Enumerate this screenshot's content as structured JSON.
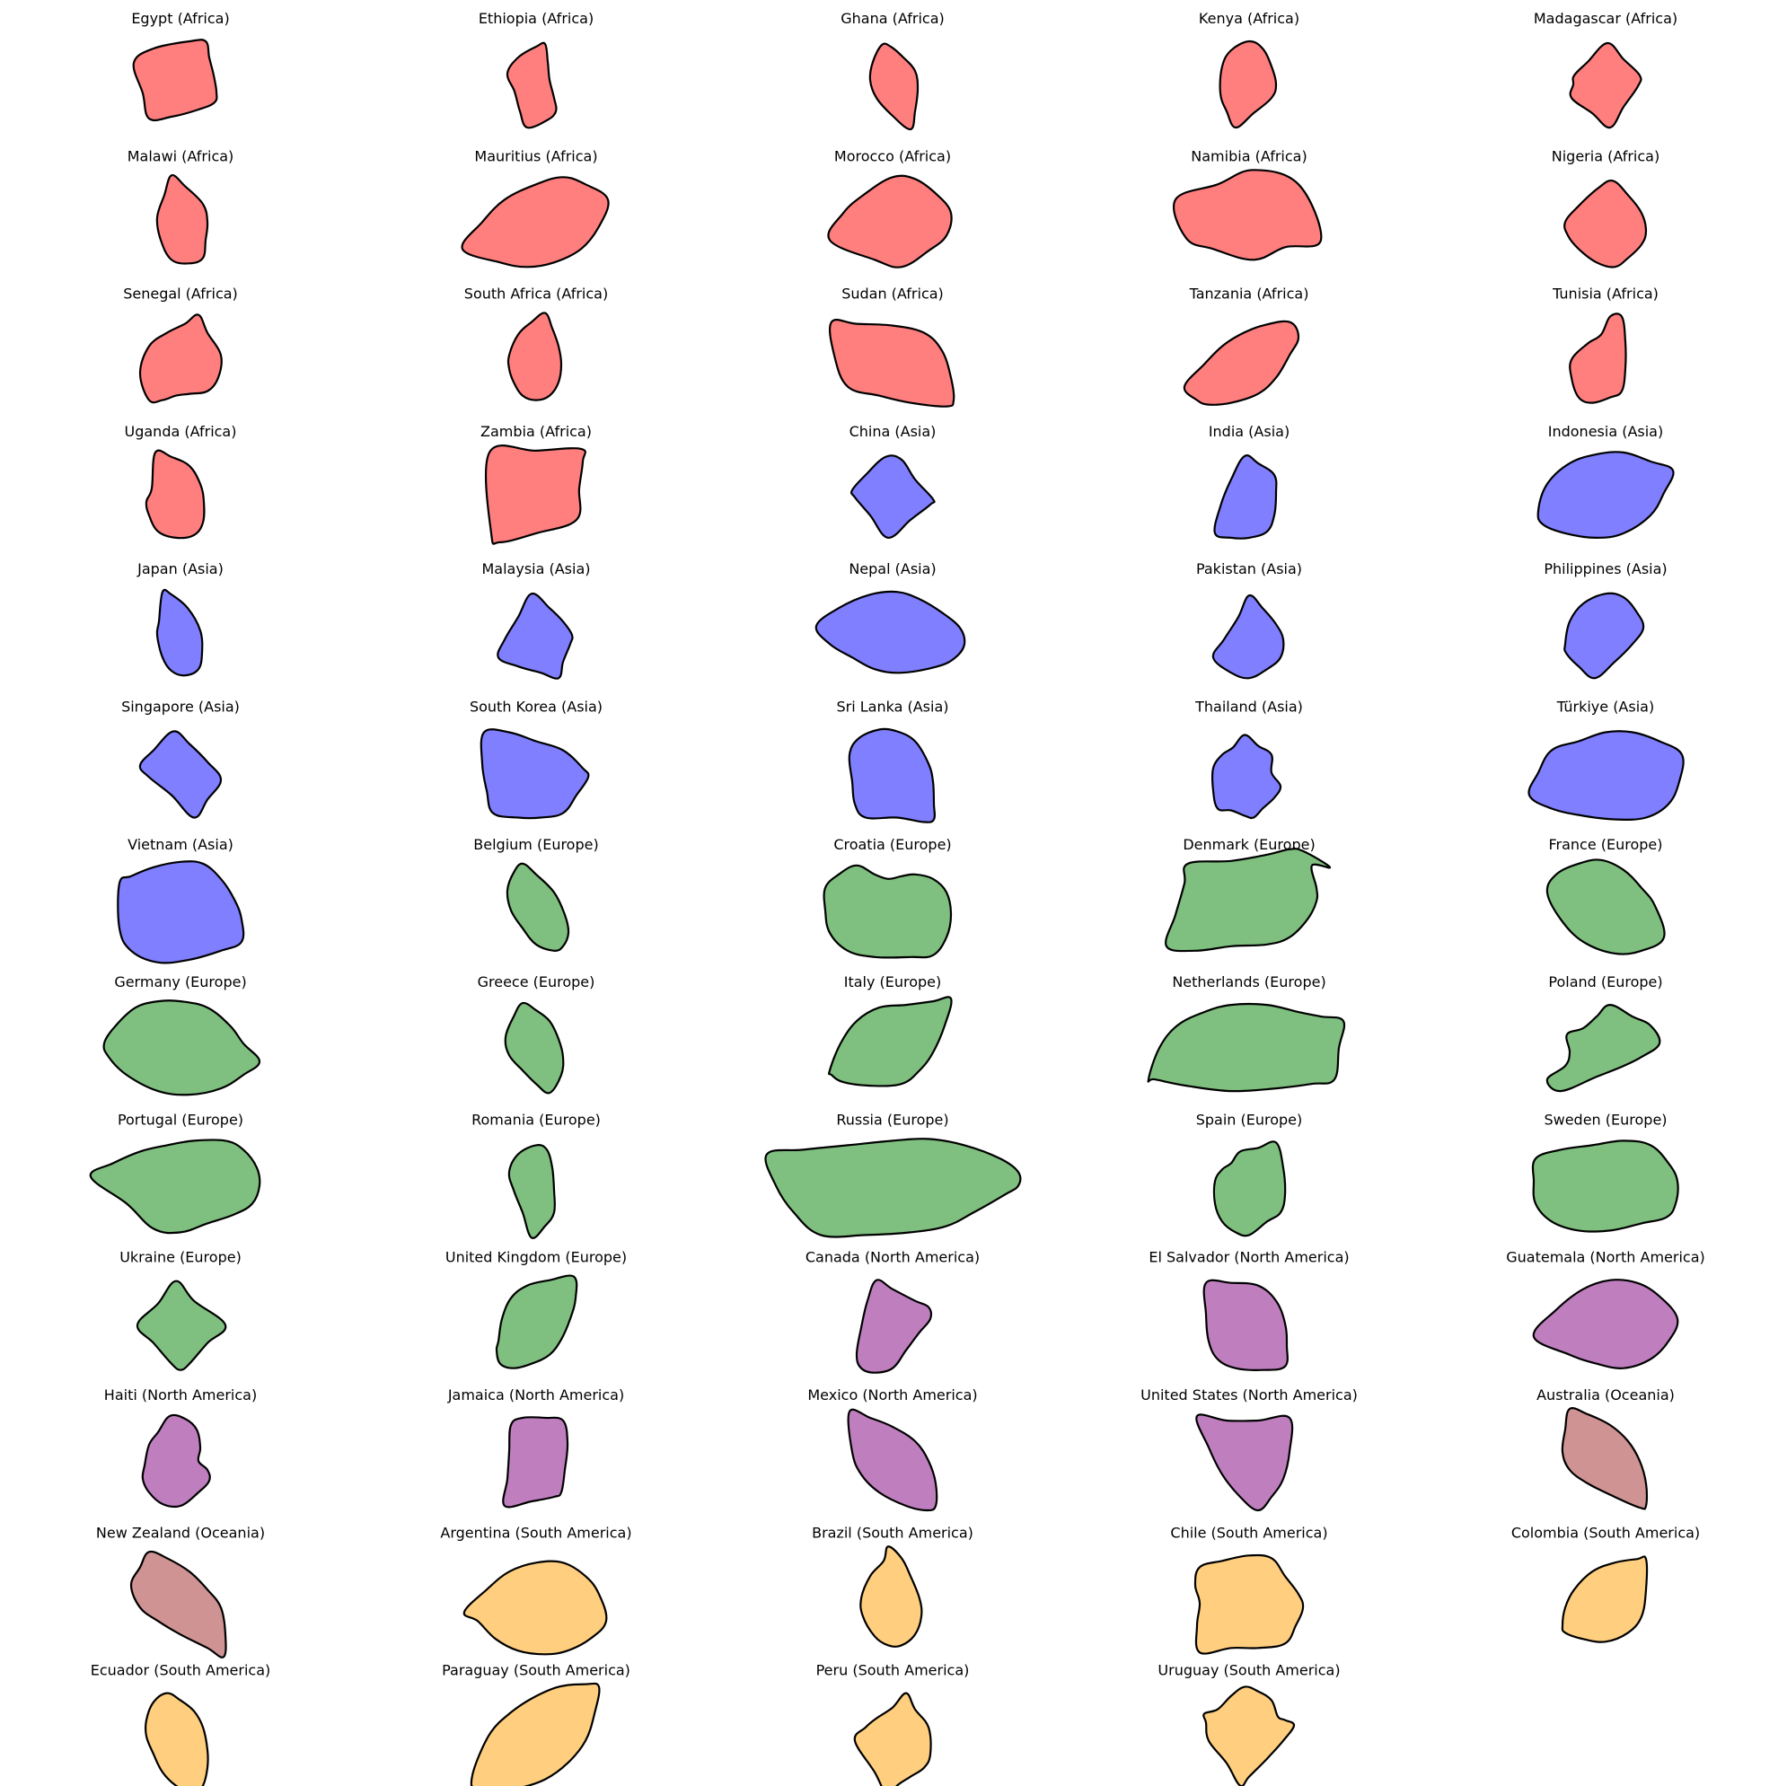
{
  "continent_colors": {
    "Africa": "#ff7f7f",
    "Asia": "#7f7fff",
    "Europe": "#7fbf7f",
    "North America": "#bf7fbf",
    "Oceania": "#cf9393",
    "South America": "#ffcf7f"
  },
  "panels": [
    {
      "title": "Egypt (Africa)",
      "continent": "Africa",
      "shape": "shape-1"
    },
    {
      "title": "Ethiopia (Africa)",
      "continent": "Africa",
      "shape": "shape-2"
    },
    {
      "title": "Ghana (Africa)",
      "continent": "Africa",
      "shape": "shape-3"
    },
    {
      "title": "Kenya (Africa)",
      "continent": "Africa",
      "shape": "shape-4"
    },
    {
      "title": "Madagascar (Africa)",
      "continent": "Africa",
      "shape": "shape-5"
    },
    {
      "title": "Malawi (Africa)",
      "continent": "Africa",
      "shape": "shape-6"
    },
    {
      "title": "Mauritius (Africa)",
      "continent": "Africa",
      "shape": "shape-7"
    },
    {
      "title": "Morocco (Africa)",
      "continent": "Africa",
      "shape": "shape-8"
    },
    {
      "title": "Namibia (Africa)",
      "continent": "Africa",
      "shape": "shape-9"
    },
    {
      "title": "Nigeria (Africa)",
      "continent": "Africa",
      "shape": "shape-10"
    },
    {
      "title": "Senegal (Africa)",
      "continent": "Africa",
      "shape": "shape-11"
    },
    {
      "title": "South Africa (Africa)",
      "continent": "Africa",
      "shape": "shape-12"
    },
    {
      "title": "Sudan (Africa)",
      "continent": "Africa",
      "shape": "shape-13"
    },
    {
      "title": "Tanzania (Africa)",
      "continent": "Africa",
      "shape": "shape-14"
    },
    {
      "title": "Tunisia (Africa)",
      "continent": "Africa",
      "shape": "shape-15"
    },
    {
      "title": "Uganda (Africa)",
      "continent": "Africa",
      "shape": "shape-16"
    },
    {
      "title": "Zambia (Africa)",
      "continent": "Africa",
      "shape": "shape-17"
    },
    {
      "title": "China (Asia)",
      "continent": "Asia",
      "shape": "shape-18"
    },
    {
      "title": "India (Asia)",
      "continent": "Asia",
      "shape": "shape-19"
    },
    {
      "title": "Indonesia (Asia)",
      "continent": "Asia",
      "shape": "shape-20"
    },
    {
      "title": "Japan (Asia)",
      "continent": "Asia",
      "shape": "shape-21"
    },
    {
      "title": "Malaysia (Asia)",
      "continent": "Asia",
      "shape": "shape-22"
    },
    {
      "title": "Nepal (Asia)",
      "continent": "Asia",
      "shape": "shape-23"
    },
    {
      "title": "Pakistan (Asia)",
      "continent": "Asia",
      "shape": "shape-24"
    },
    {
      "title": "Philippines (Asia)",
      "continent": "Asia",
      "shape": "shape-25"
    },
    {
      "title": "Singapore (Asia)",
      "continent": "Asia",
      "shape": "shape-26"
    },
    {
      "title": "South Korea (Asia)",
      "continent": "Asia",
      "shape": "shape-27"
    },
    {
      "title": "Sri Lanka (Asia)",
      "continent": "Asia",
      "shape": "shape-28"
    },
    {
      "title": "Thailand (Asia)",
      "continent": "Asia",
      "shape": "shape-29"
    },
    {
      "title": "Türkiye (Asia)",
      "continent": "Asia",
      "shape": "shape-30"
    },
    {
      "title": "Vietnam (Asia)",
      "continent": "Asia",
      "shape": "shape-31"
    },
    {
      "title": "Belgium (Europe)",
      "continent": "Europe",
      "shape": "shape-32"
    },
    {
      "title": "Croatia (Europe)",
      "continent": "Europe",
      "shape": "shape-33"
    },
    {
      "title": "Denmark (Europe)",
      "continent": "Europe",
      "shape": "shape-34"
    },
    {
      "title": "France (Europe)",
      "continent": "Europe",
      "shape": "shape-35"
    },
    {
      "title": "Germany (Europe)",
      "continent": "Europe",
      "shape": "shape-36"
    },
    {
      "title": "Greece (Europe)",
      "continent": "Europe",
      "shape": "shape-37"
    },
    {
      "title": "Italy (Europe)",
      "continent": "Europe",
      "shape": "shape-38"
    },
    {
      "title": "Netherlands (Europe)",
      "continent": "Europe",
      "shape": "shape-39"
    },
    {
      "title": "Poland (Europe)",
      "continent": "Europe",
      "shape": "shape-40"
    },
    {
      "title": "Portugal (Europe)",
      "continent": "Europe",
      "shape": "shape-41"
    },
    {
      "title": "Romania (Europe)",
      "continent": "Europe",
      "shape": "shape-42"
    },
    {
      "title": "Russia (Europe)",
      "continent": "Europe",
      "shape": "shape-43"
    },
    {
      "title": "Spain (Europe)",
      "continent": "Europe",
      "shape": "shape-44"
    },
    {
      "title": "Sweden (Europe)",
      "continent": "Europe",
      "shape": "shape-45"
    },
    {
      "title": "Ukraine (Europe)",
      "continent": "Europe",
      "shape": "shape-46"
    },
    {
      "title": "United Kingdom (Europe)",
      "continent": "Europe",
      "shape": "shape-47"
    },
    {
      "title": "Canada (North America)",
      "continent": "North America",
      "shape": "shape-48"
    },
    {
      "title": "El Salvador (North America)",
      "continent": "North America",
      "shape": "shape-49"
    },
    {
      "title": "Guatemala (North America)",
      "continent": "North America",
      "shape": "shape-50"
    },
    {
      "title": "Haiti (North America)",
      "continent": "North America",
      "shape": "shape-51"
    },
    {
      "title": "Jamaica (North America)",
      "continent": "North America",
      "shape": "shape-52"
    },
    {
      "title": "Mexico (North America)",
      "continent": "North America",
      "shape": "shape-53"
    },
    {
      "title": "United States (North America)",
      "continent": "North America",
      "shape": "shape-54"
    },
    {
      "title": "Australia (Oceania)",
      "continent": "Oceania",
      "shape": "shape-55"
    },
    {
      "title": "New Zealand (Oceania)",
      "continent": "Oceania",
      "shape": "shape-56"
    },
    {
      "title": "Argentina (South America)",
      "continent": "South America",
      "shape": "shape-57"
    },
    {
      "title": "Brazil (South America)",
      "continent": "South America",
      "shape": "shape-58"
    },
    {
      "title": "Chile (South America)",
      "continent": "South America",
      "shape": "shape-59"
    },
    {
      "title": "Colombia (South America)",
      "continent": "South America",
      "shape": "shape-60"
    },
    {
      "title": "Ecuador (South America)",
      "continent": "South America",
      "shape": "shape-61"
    },
    {
      "title": "Paraguay (South America)",
      "continent": "South America",
      "shape": "shape-62"
    },
    {
      "title": "Peru (South America)",
      "continent": "South America",
      "shape": "shape-63"
    },
    {
      "title": "Uruguay (South America)",
      "continent": "South America",
      "shape": "shape-64"
    }
  ]
}
